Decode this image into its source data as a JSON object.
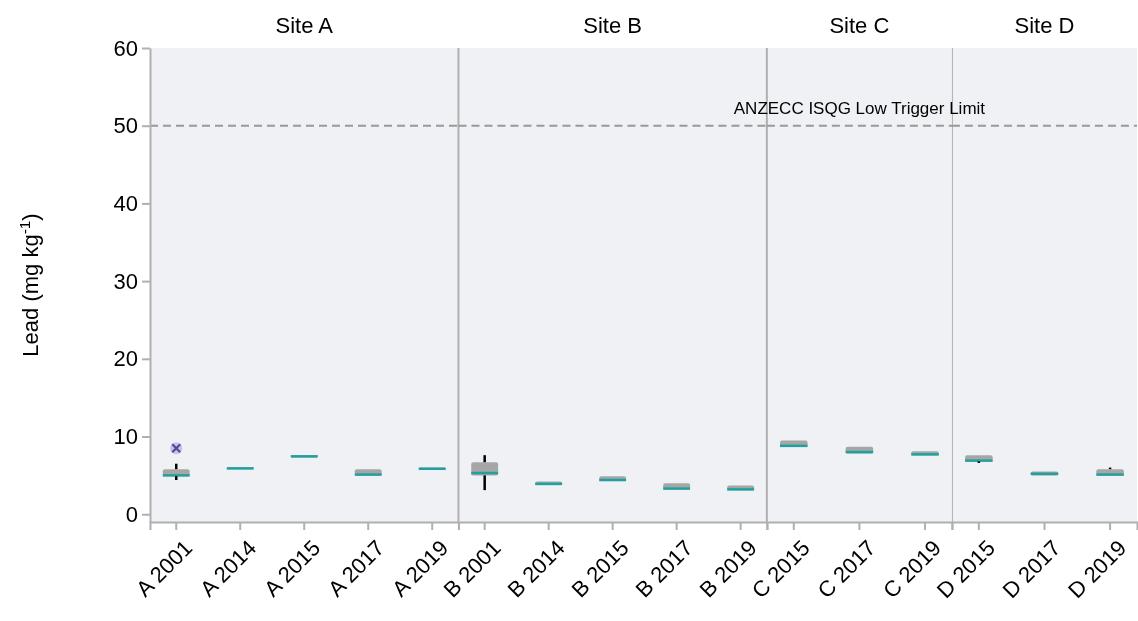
{
  "chart_data": [
    {
      "type": "box",
      "title": "Site A",
      "ylabel": "Lead (mg kg$^{-1}$)",
      "categories": [
        "A 2001",
        "A 2014",
        "A 2015",
        "A 2017",
        "A 2019"
      ],
      "color": "#a6a6a6",
      "boxes": [
        {
          "low": 4.4,
          "q1": 4.9,
          "median": 5.0,
          "q3": 5.8,
          "high": 6.5,
          "outliers": [
            8.5
          ]
        },
        {
          "low": 5.8,
          "q1": 5.8,
          "median": 5.9,
          "q3": 6.0,
          "high": 6.0
        },
        {
          "low": 7.3,
          "q1": 7.3,
          "median": 7.45,
          "q3": 7.6,
          "high": 7.6
        },
        {
          "low": 5.0,
          "q1": 5.0,
          "median": 5.1,
          "q3": 5.8,
          "high": 5.8
        },
        {
          "low": 5.7,
          "q1": 5.7,
          "median": 5.85,
          "q3": 6.0,
          "high": 6.0
        }
      ],
      "ylim": [
        -1,
        60
      ],
      "yticks": [
        0,
        10,
        20,
        30,
        40,
        50,
        60
      ],
      "ref_lines": [
        {
          "axis": "y",
          "value": 50,
          "line_style": "dashed",
          "color": "#999999"
        }
      ]
    },
    {
      "type": "box",
      "title": "Site B",
      "categories": [
        "B 2001",
        "B 2014",
        "B 2015",
        "B 2017",
        "B 2019"
      ],
      "color": "#a6a6a6",
      "boxes": [
        {
          "low": 3.1,
          "q1": 5.0,
          "median": 5.3,
          "q3": 6.7,
          "high": 7.6
        },
        {
          "low": 3.8,
          "q1": 3.8,
          "median": 3.9,
          "q3": 4.2,
          "high": 4.2
        },
        {
          "low": 4.3,
          "q1": 4.3,
          "median": 4.4,
          "q3": 4.9,
          "high": 4.9
        },
        {
          "low": 3.2,
          "q1": 3.2,
          "median": 3.3,
          "q3": 4.0,
          "high": 4.0
        },
        {
          "low": 3.1,
          "q1": 3.1,
          "median": 3.2,
          "q3": 3.7,
          "high": 3.7
        }
      ],
      "ylim": [
        -1,
        60
      ],
      "tick_labels": "x",
      "ref_lines": [
        {
          "axis": "y",
          "value": 50,
          "line_style": "dashed",
          "color": "#999999"
        }
      ]
    },
    {
      "type": "box",
      "title": "Site C",
      "categories": [
        "C 2015",
        "C 2017",
        "C 2019"
      ],
      "color": "#a6a6a6",
      "boxes": [
        {
          "low": 8.7,
          "q1": 8.7,
          "median": 8.8,
          "q3": 9.5,
          "high": 9.5
        },
        {
          "low": 7.8,
          "q1": 7.8,
          "median": 8.0,
          "q3": 8.7,
          "high": 8.7
        },
        {
          "low": 7.6,
          "q1": 7.6,
          "median": 7.7,
          "q3": 8.1,
          "high": 8.1
        }
      ],
      "ylim": [
        -1,
        60
      ],
      "tick_labels": "x",
      "ref_lines": [
        {
          "axis": "y",
          "value": 50,
          "label": "ANZECC ISQG Low Trigger Limit",
          "line_style": "dashed",
          "color": "#999999"
        }
      ]
    },
    {
      "type": "box",
      "title": "Site D",
      "categories": [
        "D 2015",
        "D 2017",
        "D 2019"
      ],
      "color": "#a6a6a6",
      "boxes": [
        {
          "low": 6.6,
          "q1": 6.8,
          "median": 6.9,
          "q3": 7.6,
          "high": 7.6
        },
        {
          "low": 5.0,
          "q1": 5.0,
          "median": 5.2,
          "q3": 5.5,
          "high": 5.5
        },
        {
          "low": 5.0,
          "q1": 5.0,
          "median": 5.1,
          "q3": 5.8,
          "high": 6.0
        }
      ],
      "ylim": [
        -1,
        60
      ],
      "tick_labels": "x",
      "ref_lines": [
        {
          "axis": "y",
          "value": 50,
          "line_style": "dashed",
          "color": "#999999"
        }
      ]
    }
  ]
}
